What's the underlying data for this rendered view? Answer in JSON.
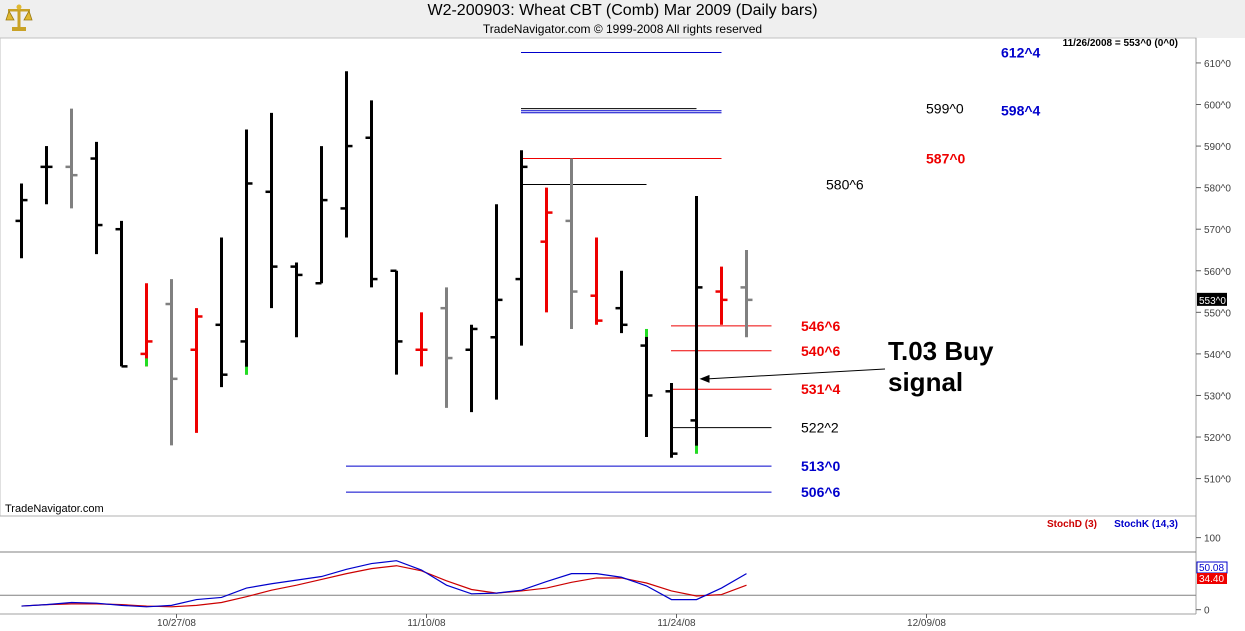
{
  "header": {
    "title": "W2-200903:  Wheat CBT (Comb) Mar 2009  (Daily bars)",
    "subtitle": "TradeNavigator.com © 1999-2008 All rights reserved",
    "readout": "11/26/2008 = 553^0 (0^0)",
    "watermark": "TradeNavigator.com",
    "logo": "gold-scales-logo"
  },
  "colors": {
    "up": "#000000",
    "down": "#ee0000",
    "neutral": "#808080",
    "highlight": "#22dd22",
    "blue_level": "#0000cc",
    "red_level": "#ee0000",
    "stoch_d": "#cc0000",
    "stoch_k": "#0000cc"
  },
  "chart_data": [
    {
      "type": "ohlc",
      "title": "W2-200903:  Wheat CBT (Comb) Mar 2009  (Daily bars)",
      "ylim": [
        501,
        616
      ],
      "price_ticks": [
        "510^0",
        "520^0",
        "530^0",
        "540^0",
        "550^0",
        "560^0",
        "570^0",
        "580^0",
        "590^0",
        "600^0",
        "610^0"
      ],
      "price_tick_values": [
        510,
        520,
        530,
        540,
        550,
        560,
        570,
        580,
        590,
        600,
        610
      ],
      "last_price_label": "553^0",
      "last_price": 553,
      "bars": [
        {
          "o": 572,
          "h": 581,
          "l": 563,
          "c": 577,
          "col": "up"
        },
        {
          "o": 585,
          "h": 590,
          "l": 576,
          "c": 585,
          "col": "up"
        },
        {
          "o": 585,
          "h": 599,
          "l": 575,
          "c": 583,
          "col": "neutral"
        },
        {
          "o": 587,
          "h": 591,
          "l": 564,
          "c": 571,
          "col": "up"
        },
        {
          "o": 570,
          "h": 572,
          "l": 537,
          "c": 537,
          "col": "up"
        },
        {
          "o": 540,
          "h": 557,
          "l": 537,
          "c": 543,
          "col": "down",
          "hl": true
        },
        {
          "o": 552,
          "h": 558,
          "l": 518,
          "c": 534,
          "col": "neutral"
        },
        {
          "o": 541,
          "h": 551,
          "l": 521,
          "c": 549,
          "col": "down"
        },
        {
          "o": 547,
          "h": 568,
          "l": 532,
          "c": 535,
          "col": "up"
        },
        {
          "o": 543,
          "h": 594,
          "l": 535,
          "c": 581,
          "col": "up",
          "hl": true
        },
        {
          "o": 579,
          "h": 598,
          "l": 551,
          "c": 561,
          "col": "up"
        },
        {
          "o": 561,
          "h": 562,
          "l": 544,
          "c": 559,
          "col": "up"
        },
        {
          "o": 557,
          "h": 590,
          "l": 557,
          "c": 577,
          "col": "up"
        },
        {
          "o": 575,
          "h": 608,
          "l": 568,
          "c": 590,
          "col": "up"
        },
        {
          "o": 592,
          "h": 601,
          "l": 556,
          "c": 558,
          "col": "up"
        },
        {
          "o": 560,
          "h": 560,
          "l": 535,
          "c": 543,
          "col": "up"
        },
        {
          "o": 541,
          "h": 550,
          "l": 537,
          "c": 541,
          "col": "down"
        },
        {
          "o": 551,
          "h": 556,
          "l": 527,
          "c": 539,
          "col": "neutral"
        },
        {
          "o": 541,
          "h": 547,
          "l": 526,
          "c": 546,
          "col": "up"
        },
        {
          "o": 544,
          "h": 576,
          "l": 529,
          "c": 553,
          "col": "up"
        },
        {
          "o": 558,
          "h": 589,
          "l": 542,
          "c": 585,
          "col": "up"
        },
        {
          "o": 567,
          "h": 580,
          "l": 550,
          "c": 574,
          "col": "down"
        },
        {
          "o": 572,
          "h": 587,
          "l": 546,
          "c": 555,
          "col": "neutral"
        },
        {
          "o": 554,
          "h": 568,
          "l": 547,
          "c": 548,
          "col": "down"
        },
        {
          "o": 551,
          "h": 560,
          "l": 545,
          "c": 547,
          "col": "up"
        },
        {
          "o": 542,
          "h": 546,
          "l": 520,
          "c": 530,
          "col": "up",
          "hl": true
        },
        {
          "o": 531,
          "h": 533,
          "l": 515,
          "c": 516,
          "col": "up"
        },
        {
          "o": 524,
          "h": 578,
          "l": 516,
          "c": 556,
          "col": "up",
          "hl": true
        },
        {
          "o": 555,
          "h": 561,
          "l": 547,
          "c": 553,
          "col": "down"
        },
        {
          "o": 556,
          "h": 565,
          "l": 544,
          "c": 553,
          "col": "neutral"
        }
      ],
      "levels": [
        {
          "label": "612^4",
          "value": 612.5,
          "color": "blue_level",
          "from": 20,
          "to": 28,
          "label_bar": 29.8,
          "bold": true
        },
        {
          "label": "598^4",
          "value": 598.5,
          "color": "blue_level",
          "from": 20,
          "to": 28,
          "label_bar": 29.8,
          "bold": true
        },
        {
          "label": "599^0",
          "value": 599,
          "color": "up",
          "from": 20,
          "to": 27,
          "label_bar": 27.3,
          "bold": false
        },
        {
          "label": "587^0",
          "value": 587,
          "color": "red_level",
          "from": 20,
          "to": 28,
          "label_bar": 28.3,
          "bold": true
        },
        {
          "label": "580^6",
          "value": 580.75,
          "color": "up",
          "from": 20,
          "to": 25,
          "label_bar": 25.3,
          "bold": false
        },
        {
          "label": "546^6",
          "value": 546.75,
          "color": "red_level",
          "from": 26,
          "to": 30,
          "label_bar": 24.1,
          "bold": true
        },
        {
          "label": "540^6",
          "value": 540.75,
          "color": "red_level",
          "from": 26,
          "to": 30,
          "label_bar": 24.1,
          "bold": true
        },
        {
          "label": "531^4",
          "value": 531.5,
          "color": "red_level",
          "from": 26,
          "to": 30,
          "label_bar": 24.1,
          "bold": true
        },
        {
          "label": "522^2",
          "value": 522.25,
          "color": "up",
          "from": 26,
          "to": 30,
          "label_bar": 24.1,
          "bold": false
        },
        {
          "label": "513^0",
          "value": 513,
          "color": "blue_level",
          "from": 13,
          "to": 30,
          "label_bar": 24.1,
          "bold": true
        },
        {
          "label": "506^6",
          "value": 506.75,
          "color": "blue_level",
          "from": 13,
          "to": 30,
          "label_bar": 24.1,
          "bold": true
        }
      ],
      "annotation": {
        "lines": [
          "T.03 Buy",
          "signal"
        ],
        "arrow_bar": 27,
        "arrow_price": 534
      }
    },
    {
      "type": "line",
      "legend": [
        {
          "name": "StochD (3)",
          "color": "stoch_d"
        },
        {
          "name": "StochK (14,3)",
          "color": "stoch_k"
        }
      ],
      "ylim": [
        -6,
        130
      ],
      "y_ticks": [
        "0",
        "100"
      ],
      "y_tick_values": [
        0,
        100
      ],
      "reference_lines": [
        20,
        80
      ],
      "x_ticks": [
        "10/27/08",
        "11/10/08",
        "11/24/08",
        "12/09/08"
      ],
      "x_tick_bars": [
        6.2,
        16.2,
        26.2,
        36.2
      ],
      "value_labels": [
        "50.08",
        "34.40"
      ],
      "series": [
        {
          "name": "StochD (3)",
          "color": "stoch_d",
          "values": [
            5,
            7,
            8,
            8,
            7,
            5,
            4,
            6,
            10,
            18,
            27,
            34,
            42,
            50,
            57,
            61,
            54,
            40,
            28,
            23,
            26,
            30,
            38,
            44,
            44,
            37,
            26,
            19,
            21,
            34
          ]
        },
        {
          "name": "StochK (14,3)",
          "color": "stoch_k",
          "values": [
            5,
            7,
            10,
            9,
            6,
            4,
            6,
            14,
            17,
            30,
            36,
            41,
            46,
            56,
            64,
            68,
            55,
            34,
            22,
            23,
            27,
            39,
            50,
            50,
            45,
            33,
            14,
            14,
            30,
            50
          ]
        }
      ]
    }
  ]
}
